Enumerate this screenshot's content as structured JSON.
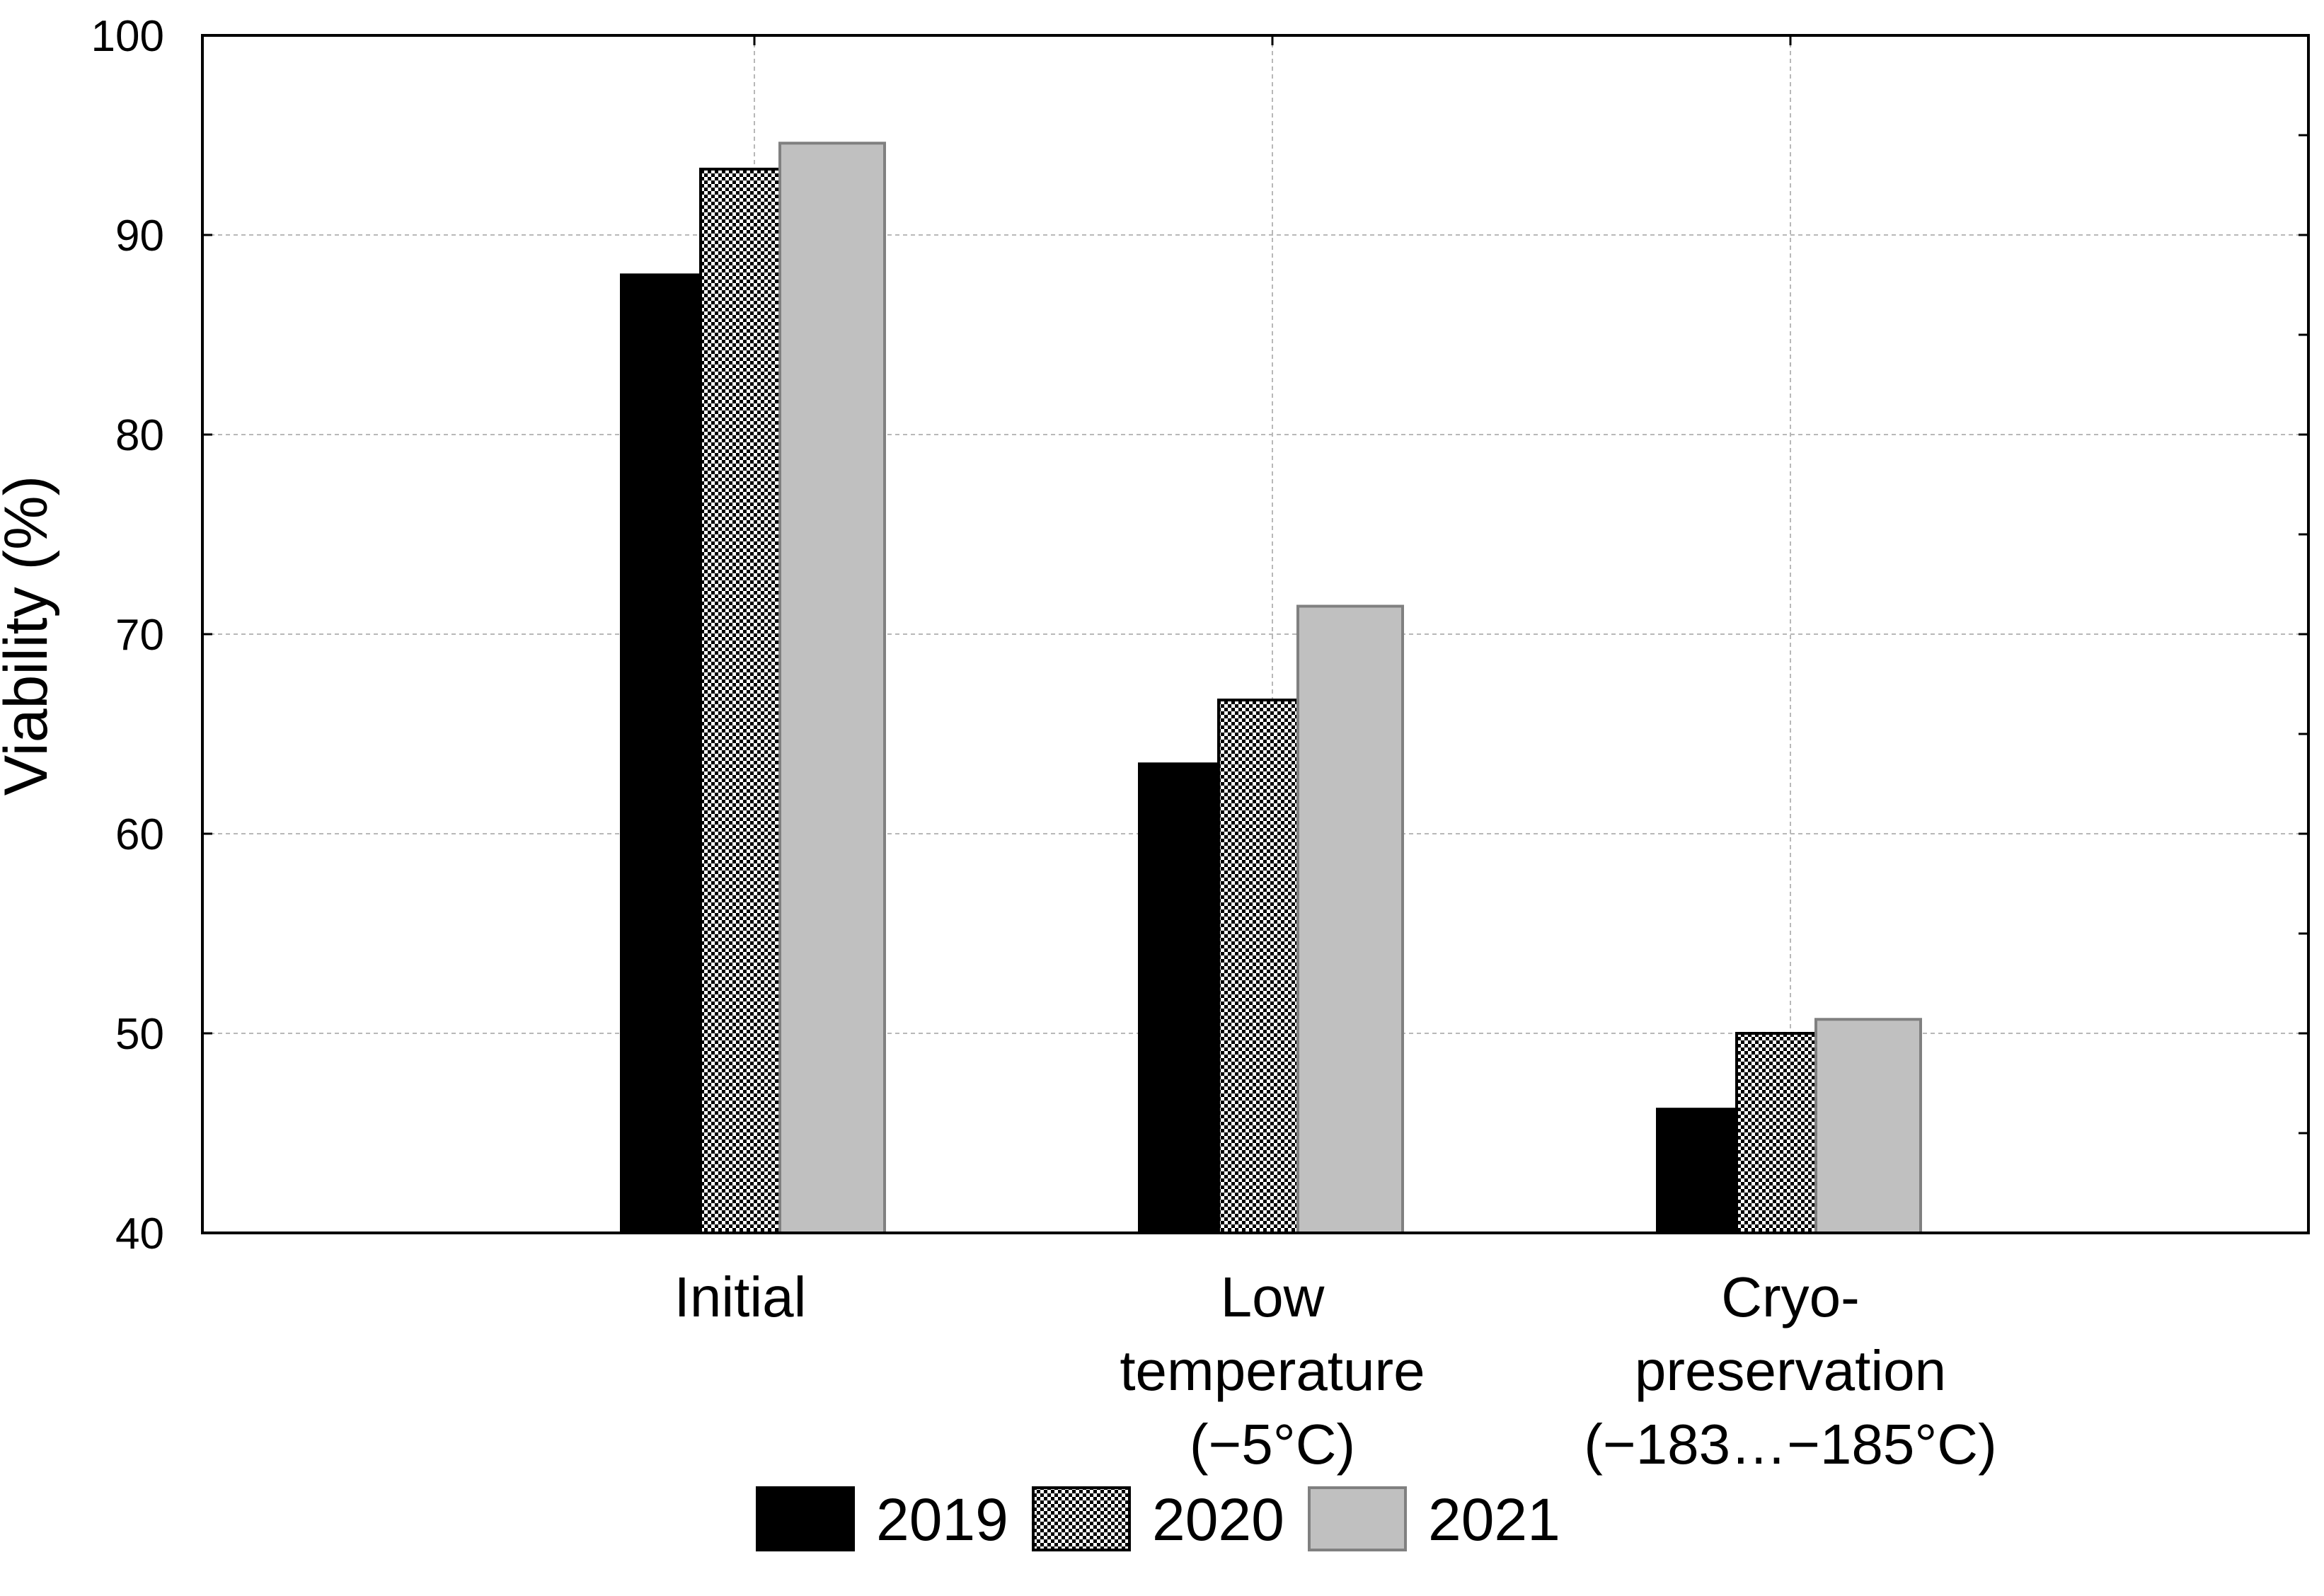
{
  "chart_data": {
    "type": "bar",
    "title": "",
    "xlabel": "",
    "ylabel": "Viability (%)",
    "ylim": [
      40,
      100
    ],
    "yticks": [
      40,
      50,
      60,
      70,
      80,
      90,
      100
    ],
    "grid": true,
    "categories": [
      [
        "Initial"
      ],
      [
        "Low",
        "temperature",
        "(−5°C)"
      ],
      [
        "Cryo-",
        "preservation",
        "(−183…−185°C)"
      ]
    ],
    "series": [
      {
        "name": "2019",
        "values": [
          88.0,
          63.5,
          46.2
        ],
        "fill": "#000000",
        "pattern": "solid"
      },
      {
        "name": "2020",
        "values": [
          93.3,
          66.7,
          50.0
        ],
        "fill": "#9a9a9a",
        "pattern": "crosshatch"
      },
      {
        "name": "2021",
        "values": [
          94.6,
          71.4,
          50.7
        ],
        "fill": "#c0c0c0",
        "pattern": "solid"
      }
    ],
    "legend_position": "bottom"
  }
}
